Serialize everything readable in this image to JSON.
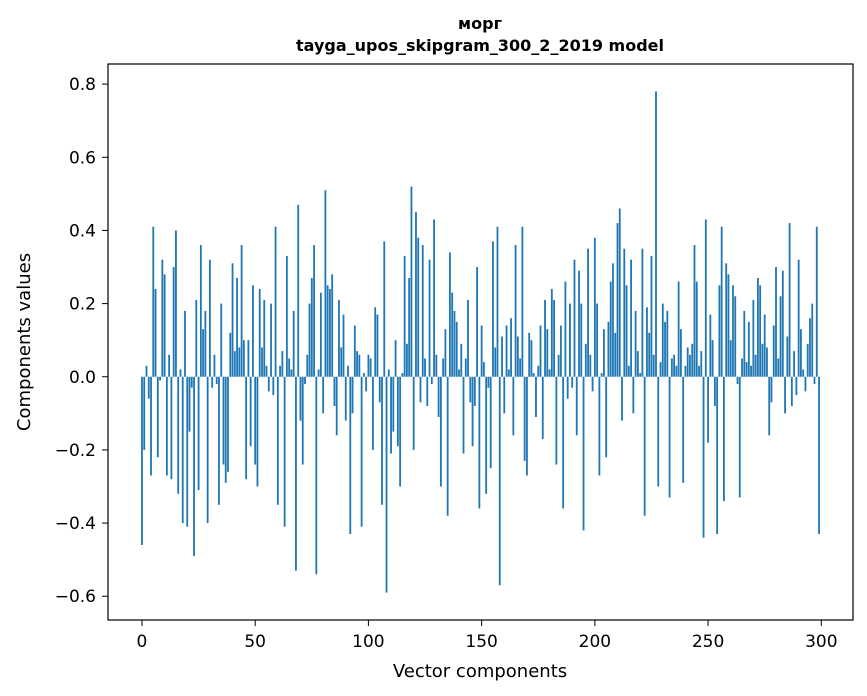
{
  "chart_data": {
    "type": "bar",
    "title_line1": "морг",
    "title_line2": "tayga_upos_skipgram_300_2_2019 model",
    "xlabel": "Vector components",
    "ylabel": "Components values",
    "xlim": [
      -15,
      314
    ],
    "ylim": [
      -0.665,
      0.855
    ],
    "xticks": [
      0,
      50,
      100,
      150,
      200,
      250,
      300
    ],
    "xtick_labels": [
      "0",
      "50",
      "100",
      "150",
      "200",
      "250",
      "300"
    ],
    "yticks": [
      -0.6,
      -0.4,
      -0.2,
      0.0,
      0.2,
      0.4,
      0.6,
      0.8
    ],
    "ytick_labels": [
      "−0.6",
      "−0.4",
      "−0.2",
      "0.0",
      "0.2",
      "0.4",
      "0.6",
      "0.8"
    ],
    "bar_color": "#1f77b4",
    "values": [
      -0.46,
      -0.2,
      0.03,
      -0.06,
      -0.27,
      0.41,
      0.24,
      -0.22,
      -0.01,
      0.32,
      0.28,
      -0.27,
      0.06,
      -0.28,
      0.3,
      0.4,
      -0.32,
      0.02,
      -0.4,
      0.18,
      -0.41,
      -0.15,
      -0.03,
      -0.49,
      0.21,
      -0.31,
      0.36,
      0.13,
      0.18,
      -0.4,
      0.32,
      -0.03,
      0.06,
      -0.02,
      -0.35,
      0.2,
      -0.24,
      -0.29,
      -0.26,
      0.12,
      0.31,
      0.07,
      0.27,
      0.08,
      0.36,
      0.1,
      -0.28,
      0.1,
      -0.19,
      0.25,
      -0.24,
      -0.3,
      0.24,
      0.08,
      0.21,
      0.03,
      -0.04,
      0.2,
      -0.05,
      0.41,
      -0.35,
      0.03,
      0.07,
      -0.41,
      0.33,
      0.05,
      0.02,
      0.18,
      -0.53,
      0.47,
      -0.12,
      -0.24,
      -0.02,
      0.06,
      0.2,
      0.27,
      0.36,
      -0.54,
      0.02,
      0.23,
      -0.1,
      0.51,
      0.25,
      0.24,
      0.28,
      -0.08,
      -0.16,
      0.21,
      0.08,
      0.17,
      -0.12,
      0.03,
      -0.43,
      -0.1,
      0.14,
      0.07,
      0.06,
      -0.41,
      0.01,
      -0.04,
      0.06,
      0.05,
      -0.2,
      0.19,
      0.17,
      -0.07,
      -0.35,
      0.37,
      -0.59,
      0.02,
      -0.21,
      -0.15,
      0.1,
      -0.19,
      -0.3,
      0.01,
      0.33,
      0.09,
      0.27,
      0.52,
      -0.2,
      0.45,
      0.38,
      -0.07,
      0.36,
      0.05,
      -0.08,
      0.32,
      -0.02,
      0.43,
      0.06,
      -0.11,
      -0.3,
      0.05,
      0.13,
      -0.38,
      0.34,
      0.23,
      0.18,
      0.15,
      0.02,
      0.09,
      -0.21,
      0.05,
      0.21,
      -0.07,
      -0.19,
      -0.08,
      0.3,
      -0.36,
      0.14,
      0.04,
      -0.32,
      -0.03,
      -0.25,
      0.37,
      0.08,
      0.41,
      -0.57,
      0.11,
      -0.1,
      0.14,
      0.02,
      0.16,
      -0.16,
      0.36,
      0.11,
      0.05,
      0.41,
      -0.23,
      -0.27,
      0.12,
      0.1,
      0.01,
      -0.11,
      0.03,
      0.14,
      -0.17,
      0.21,
      0.13,
      0.02,
      0.24,
      0.21,
      -0.24,
      0.06,
      0.14,
      -0.36,
      0.26,
      -0.06,
      0.2,
      -0.03,
      0.32,
      -0.16,
      0.29,
      0.2,
      -0.42,
      0.09,
      0.35,
      0.06,
      -0.04,
      0.38,
      0.2,
      -0.27,
      0.01,
      0.13,
      -0.22,
      0.15,
      0.26,
      0.31,
      0.12,
      0.42,
      0.46,
      -0.12,
      0.35,
      0.25,
      0.03,
      0.32,
      -0.1,
      0.18,
      0.07,
      0.01,
      0.35,
      -0.38,
      0.19,
      0.12,
      0.33,
      0.06,
      0.78,
      -0.3,
      0.04,
      0.2,
      0.15,
      0.18,
      -0.33,
      0.05,
      0.06,
      0.03,
      0.26,
      0.13,
      -0.29,
      0.03,
      0.08,
      0.06,
      0.09,
      0.36,
      0.26,
      0.03,
      0.07,
      -0.44,
      0.43,
      -0.18,
      0.17,
      0.1,
      -0.08,
      -0.43,
      0.25,
      0.41,
      -0.34,
      0.31,
      0.28,
      0.1,
      0.25,
      0.22,
      -0.02,
      -0.33,
      0.05,
      0.18,
      0.04,
      0.15,
      0.03,
      0.21,
      0.06,
      0.27,
      0.25,
      0.09,
      0.17,
      0.08,
      -0.16,
      -0.07,
      0.14,
      0.3,
      0.05,
      0.22,
      0.29,
      -0.1,
      0.11,
      0.42,
      -0.08,
      0.07,
      -0.05,
      0.32,
      0.13,
      0.02,
      -0.04,
      0.09,
      0.16,
      0.2,
      -0.02,
      0.41,
      -0.43
    ]
  }
}
